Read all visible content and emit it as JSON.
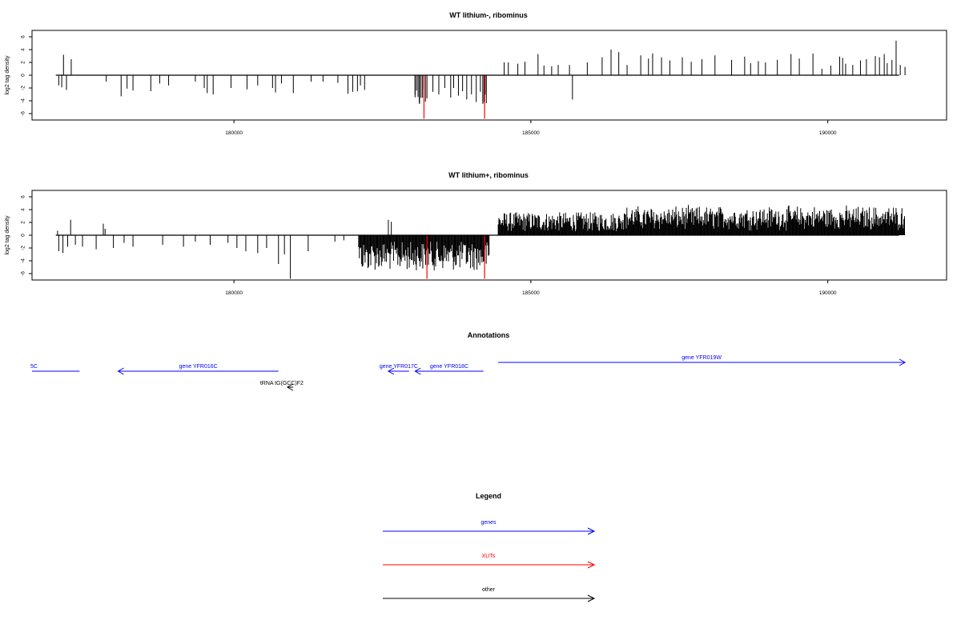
{
  "colors": {
    "genes": "#0000ff",
    "xuts": "#ff0000",
    "other": "#000000",
    "signal": "#000000"
  },
  "chart_data": [
    {
      "type": "bar",
      "title": "WT lithium-, ribominus",
      "ylabel": "log2 tag density",
      "xlim": [
        176600,
        192000
      ],
      "ylim": [
        -7,
        7
      ],
      "xticks": [
        180000,
        185000,
        190000
      ],
      "yticks": [
        -6,
        -4,
        -2,
        0,
        2,
        4,
        6
      ],
      "baseline": [
        177000,
        191200
      ],
      "positive": [
        [
          177130,
          3.2
        ],
        [
          177260,
          2.5
        ],
        [
          184550,
          2.0
        ],
        [
          184620,
          2.0
        ],
        [
          184780,
          1.8
        ],
        [
          184900,
          2.1
        ],
        [
          185120,
          3.3
        ],
        [
          185220,
          1.5
        ],
        [
          185350,
          1.4
        ],
        [
          185460,
          1.6
        ],
        [
          185650,
          1.6
        ],
        [
          185950,
          2.0
        ],
        [
          186200,
          2.8
        ],
        [
          186350,
          4.0
        ],
        [
          186480,
          3.6
        ],
        [
          186620,
          1.6
        ],
        [
          186850,
          3.1
        ],
        [
          186980,
          2.6
        ],
        [
          187050,
          3.4
        ],
        [
          187200,
          2.8
        ],
        [
          187340,
          2.3
        ],
        [
          187550,
          2.8
        ],
        [
          187700,
          2.1
        ],
        [
          187880,
          2.5
        ],
        [
          188100,
          3.1
        ],
        [
          188380,
          2.4
        ],
        [
          188600,
          2.9
        ],
        [
          188700,
          1.9
        ],
        [
          188830,
          2.2
        ],
        [
          188950,
          2.0
        ],
        [
          189150,
          2.4
        ],
        [
          189380,
          3.3
        ],
        [
          189520,
          2.6
        ],
        [
          189750,
          3.4
        ],
        [
          189900,
          1.0
        ],
        [
          190050,
          1.5
        ],
        [
          190200,
          2.9
        ],
        [
          190250,
          2.7
        ],
        [
          190300,
          1.8
        ],
        [
          190420,
          1.6
        ],
        [
          190550,
          2.3
        ],
        [
          190650,
          2.5
        ],
        [
          190800,
          3.0
        ],
        [
          190870,
          2.8
        ],
        [
          190950,
          3.3
        ],
        [
          191000,
          1.9
        ],
        [
          191080,
          2.4
        ],
        [
          191150,
          5.4
        ],
        [
          191220,
          1.6
        ],
        [
          191300,
          1.3
        ]
      ],
      "negative": [
        [
          177050,
          -1.6
        ],
        [
          177100,
          -1.9
        ],
        [
          177180,
          -2.3
        ],
        [
          177850,
          -1.0
        ],
        [
          178100,
          -3.3
        ],
        [
          178200,
          -2.1
        ],
        [
          178300,
          -2.4
        ],
        [
          178600,
          -2.5
        ],
        [
          178750,
          -1.3
        ],
        [
          178900,
          -1.6
        ],
        [
          179350,
          -1.0
        ],
        [
          179500,
          -2.0
        ],
        [
          179550,
          -2.8
        ],
        [
          179650,
          -3.0
        ],
        [
          179950,
          -2.0
        ],
        [
          180220,
          -2.2
        ],
        [
          180400,
          -1.6
        ],
        [
          180650,
          -2.0
        ],
        [
          180700,
          -2.7
        ],
        [
          180800,
          -1.3
        ],
        [
          181000,
          -2.8
        ],
        [
          181300,
          -1.0
        ],
        [
          181500,
          -1.0
        ],
        [
          181750,
          -1.2
        ],
        [
          181920,
          -2.9
        ],
        [
          182000,
          -2.6
        ],
        [
          182080,
          -2.5
        ],
        [
          182130,
          -1.6
        ],
        [
          182200,
          -2.3
        ],
        [
          183050,
          -3.1
        ],
        [
          183120,
          -4.3
        ],
        [
          183200,
          -2.1
        ],
        [
          183350,
          -2.6
        ],
        [
          183450,
          -3.0
        ],
        [
          183550,
          -2.0
        ],
        [
          183650,
          -3.5
        ],
        [
          183700,
          -2.0
        ],
        [
          183780,
          -3.2
        ],
        [
          183850,
          -2.5
        ],
        [
          183920,
          -3.8
        ],
        [
          184000,
          -3.0
        ],
        [
          184080,
          -4.2
        ],
        [
          184150,
          -2.6
        ],
        [
          184220,
          -3.4
        ],
        [
          185700,
          -3.8
        ]
      ],
      "red": [
        [
          183200,
          -6.8
        ],
        [
          184220,
          -6.8
        ]
      ],
      "red_cluster": [
        183050,
        183250
      ],
      "red_cluster2": [
        184190,
        184250
      ]
    },
    {
      "type": "bar",
      "title": "WT lithium+, ribominus",
      "ylabel": "log2 tag density",
      "xlim": [
        176600,
        192000
      ],
      "ylim": [
        -7,
        7
      ],
      "xticks": [
        180000,
        185000,
        190000
      ],
      "yticks": [
        -6,
        -4,
        -2,
        0,
        2,
        4,
        6
      ],
      "baseline": [
        177000,
        191200
      ],
      "positive": [
        [
          177030,
          0.7
        ],
        [
          177250,
          2.4
        ],
        [
          177800,
          1.8
        ],
        [
          177830,
          1.0
        ],
        [
          182600,
          2.4
        ],
        [
          182650,
          2.1
        ]
      ],
      "negative_sparse": [
        [
          177050,
          -2.5
        ],
        [
          177120,
          -2.8
        ],
        [
          177200,
          -1.8
        ],
        [
          177330,
          -1.5
        ],
        [
          177450,
          -1.8
        ],
        [
          177680,
          -2.2
        ],
        [
          177970,
          -2.0
        ],
        [
          178150,
          -1.2
        ],
        [
          178300,
          -1.8
        ],
        [
          178800,
          -1.5
        ],
        [
          179150,
          -1.8
        ],
        [
          179350,
          -1.0
        ],
        [
          179600,
          -1.5
        ],
        [
          179900,
          -1.2
        ],
        [
          180050,
          -2.0
        ],
        [
          180200,
          -2.5
        ],
        [
          180400,
          -2.8
        ],
        [
          180550,
          -2.0
        ],
        [
          180750,
          -4.5
        ],
        [
          180850,
          -3.0
        ],
        [
          180950,
          -6.8
        ],
        [
          181250,
          -2.5
        ],
        [
          181700,
          -1.0
        ],
        [
          181850,
          -0.8
        ]
      ],
      "dense_negative_range": [
        182100,
        184300
      ],
      "dense_positive_range": [
        184450,
        191300
      ],
      "red": [
        [
          183250,
          -6.8
        ],
        [
          184220,
          -6.8
        ]
      ]
    }
  ],
  "annotations": {
    "title": "Annotations",
    "items": [
      {
        "label": "5C",
        "kind": "genes",
        "dir": "none",
        "start": 176600,
        "end": 177400,
        "label_at": "left",
        "row": 1
      },
      {
        "label": "gene YFR016C",
        "kind": "genes",
        "dir": "left",
        "start": 178050,
        "end": 180750,
        "row": 1
      },
      {
        "label": "gene YFR017C",
        "kind": "genes",
        "dir": "left",
        "start": 182600,
        "end": 182950,
        "row": 1
      },
      {
        "label": "gene YFR018C",
        "kind": "genes",
        "dir": "left",
        "start": 183050,
        "end": 184200,
        "row": 1
      },
      {
        "label": "gene YFR019W",
        "kind": "genes",
        "dir": "right",
        "start": 184450,
        "end": 191300,
        "row": 0
      },
      {
        "label": "tRNA tG(GCC)F2",
        "kind": "other",
        "dir": "left",
        "start": 180900,
        "end": 181000,
        "row": 2
      }
    ]
  },
  "legend": {
    "title": "Legend",
    "items": [
      {
        "label": "genes",
        "kind": "genes"
      },
      {
        "label": "XUTs",
        "kind": "xuts"
      },
      {
        "label": "other",
        "kind": "other"
      }
    ]
  }
}
